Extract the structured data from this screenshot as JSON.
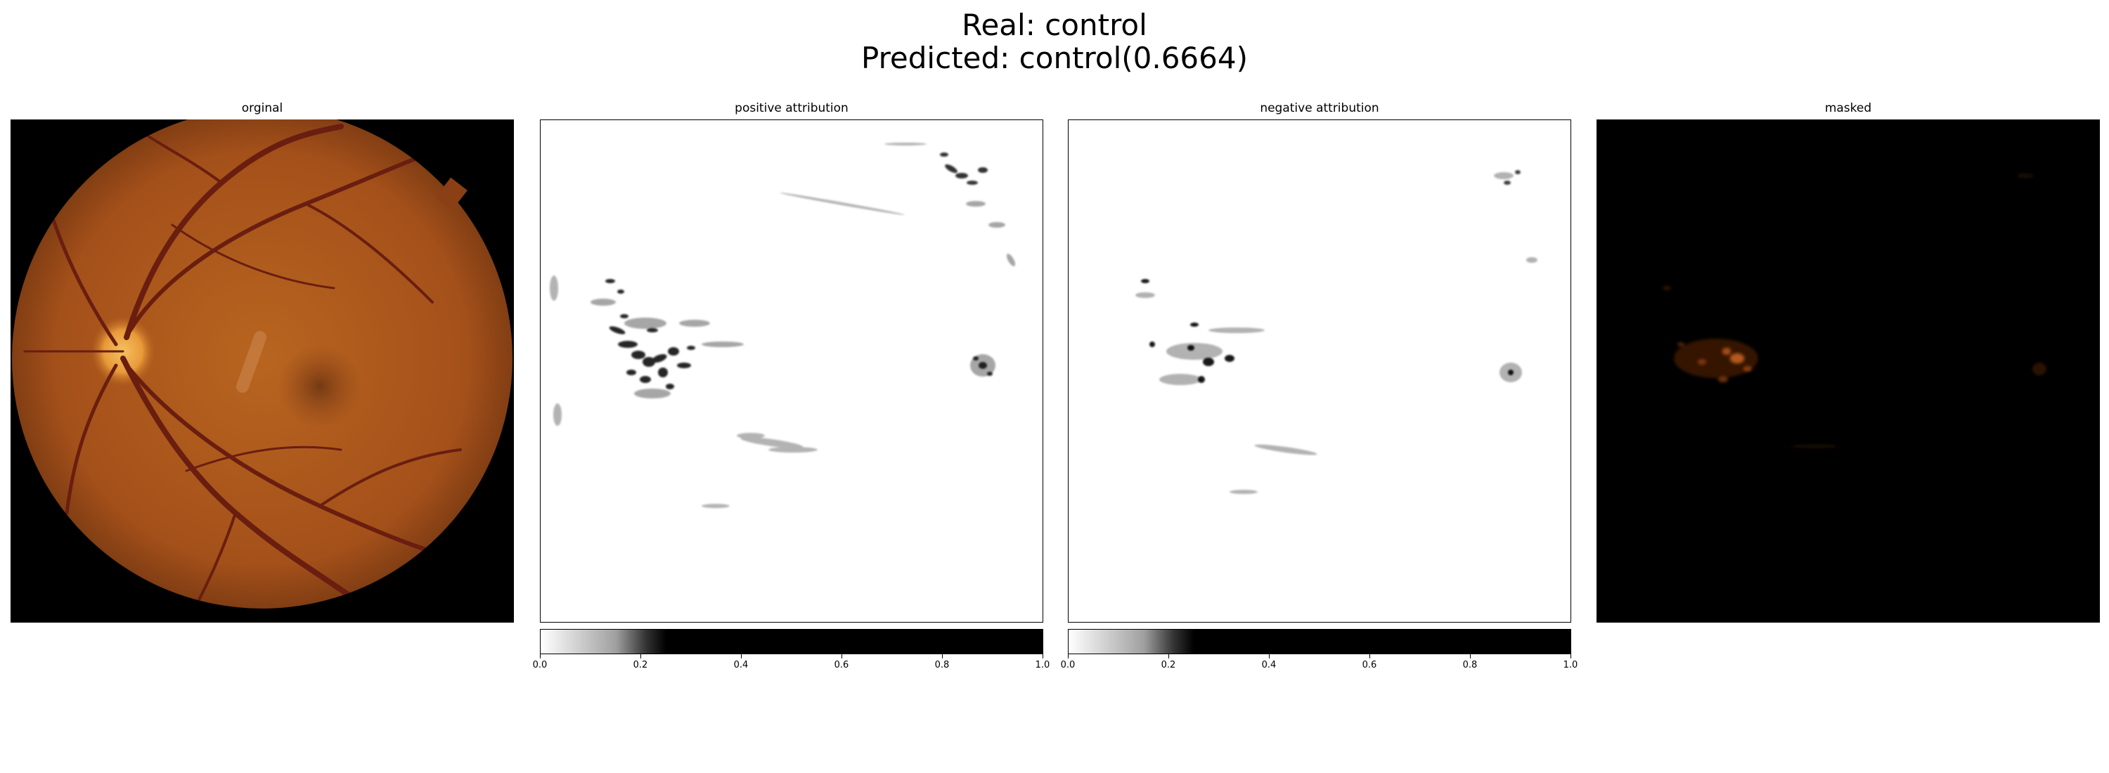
{
  "figure": {
    "title_line1": "Real: control",
    "title_line2": "Predicted: control(0.6664)"
  },
  "panels": [
    {
      "title": "orginal",
      "icon": "retina-fundus-image"
    },
    {
      "title": "positive attribution",
      "icon": "attribution-heatmap"
    },
    {
      "title": "negative attribution",
      "icon": "attribution-heatmap"
    },
    {
      "title": "masked",
      "icon": "masked-fundus-image"
    }
  ],
  "colorbar": {
    "tick_labels": [
      "0.0",
      "0.2",
      "0.4",
      "0.6",
      "0.8",
      "1.0"
    ],
    "range": [
      0.0,
      1.0
    ],
    "colormap": "gray_r"
  },
  "colors": {
    "fundus": "#b05a1c",
    "fundus_edge": "#6e3410",
    "vessel": "#6a1e10",
    "optic_disc": "#f0a040"
  }
}
